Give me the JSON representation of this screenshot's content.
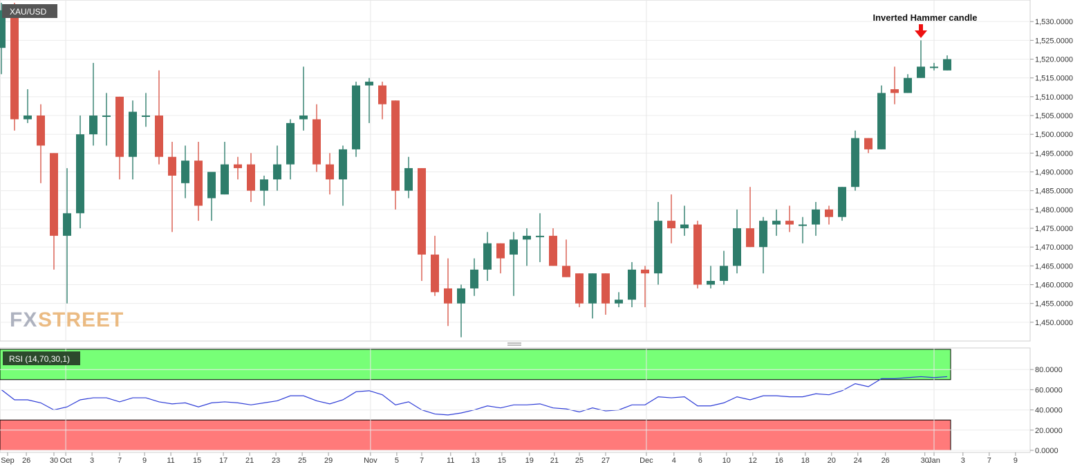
{
  "symbol_label": "XAU/USD",
  "annotation_label": "Inverted Hammer candle",
  "watermark": {
    "part1": "FX",
    "part2": "STREET"
  },
  "rsi_label": "RSI (14,70,30,1)",
  "colors": {
    "up": "#2e7d6b",
    "down": "#d9574a",
    "overbought": "#77ff77",
    "oversold": "#ff7a7a",
    "rsi_line": "#2c3bd6",
    "arrow": "#ee1111",
    "badge": "#555555",
    "rsi_badge": "#2c4a2c"
  },
  "chart_data": [
    {
      "type": "candlestick",
      "title": "XAU/USD",
      "ylim": [
        1445,
        1535
      ],
      "y_ticks": [
        "1,450.0000",
        "1,455.0000",
        "1,460.0000",
        "1,465.0000",
        "1,470.0000",
        "1,475.0000",
        "1,480.0000",
        "1,485.0000",
        "1,490.0000",
        "1,495.0000",
        "1,500.0000",
        "1,505.0000",
        "1,510.0000",
        "1,515.0000",
        "1,520.0000",
        "1,525.0000",
        "1,530.0000"
      ],
      "x_tick_labels": [
        "Sep",
        "26",
        "30",
        "Oct",
        "3",
        "7",
        "9",
        "11",
        "15",
        "17",
        "21",
        "23",
        "25",
        "29",
        "Nov",
        "5",
        "7",
        "11",
        "13",
        "15",
        "19",
        "21",
        "25",
        "27",
        "Dec",
        "4",
        "6",
        "10",
        "12",
        "16",
        "18",
        "20",
        "24",
        "26",
        "30",
        "Jan",
        "3",
        "7",
        "9"
      ],
      "candles": [
        {
          "o": 1523,
          "h": 1535,
          "l": 1516,
          "c": 1533
        },
        {
          "o": 1534,
          "h": 1535,
          "l": 1501,
          "c": 1504
        },
        {
          "o": 1504,
          "h": 1512,
          "l": 1503,
          "c": 1505
        },
        {
          "o": 1505,
          "h": 1508,
          "l": 1487,
          "c": 1497
        },
        {
          "o": 1495,
          "h": 1495,
          "l": 1464,
          "c": 1473
        },
        {
          "o": 1473,
          "h": 1491,
          "l": 1455,
          "c": 1479
        },
        {
          "o": 1479,
          "h": 1505,
          "l": 1475,
          "c": 1500
        },
        {
          "o": 1500,
          "h": 1519,
          "l": 1497,
          "c": 1505
        },
        {
          "o": 1505,
          "h": 1511,
          "l": 1497,
          "c": 1505
        },
        {
          "o": 1510,
          "h": 1510,
          "l": 1488,
          "c": 1494
        },
        {
          "o": 1494,
          "h": 1509,
          "l": 1488,
          "c": 1506
        },
        {
          "o": 1505,
          "h": 1511,
          "l": 1502,
          "c": 1505
        },
        {
          "o": 1505,
          "h": 1517,
          "l": 1492,
          "c": 1494
        },
        {
          "o": 1494,
          "h": 1498,
          "l": 1474,
          "c": 1489
        },
        {
          "o": 1487,
          "h": 1497,
          "l": 1483,
          "c": 1493
        },
        {
          "o": 1493,
          "h": 1498,
          "l": 1477,
          "c": 1481
        },
        {
          "o": 1483,
          "h": 1490,
          "l": 1477,
          "c": 1490
        },
        {
          "o": 1484,
          "h": 1498,
          "l": 1484,
          "c": 1492
        },
        {
          "o": 1492,
          "h": 1494,
          "l": 1488,
          "c": 1491
        },
        {
          "o": 1492,
          "h": 1495,
          "l": 1482,
          "c": 1485
        },
        {
          "o": 1485,
          "h": 1489,
          "l": 1481,
          "c": 1488
        },
        {
          "o": 1488,
          "h": 1497,
          "l": 1485,
          "c": 1492
        },
        {
          "o": 1492,
          "h": 1504,
          "l": 1488,
          "c": 1503
        },
        {
          "o": 1504,
          "h": 1518,
          "l": 1501,
          "c": 1505
        },
        {
          "o": 1504,
          "h": 1508,
          "l": 1490,
          "c": 1492
        },
        {
          "o": 1492,
          "h": 1495,
          "l": 1484,
          "c": 1488
        },
        {
          "o": 1488,
          "h": 1497,
          "l": 1481,
          "c": 1496
        },
        {
          "o": 1496,
          "h": 1514,
          "l": 1494,
          "c": 1513
        },
        {
          "o": 1513,
          "h": 1515,
          "l": 1503,
          "c": 1514
        },
        {
          "o": 1513,
          "h": 1514,
          "l": 1504,
          "c": 1508
        },
        {
          "o": 1509,
          "h": 1509,
          "l": 1480,
          "c": 1485
        },
        {
          "o": 1485,
          "h": 1494,
          "l": 1483,
          "c": 1491
        },
        {
          "o": 1491,
          "h": 1491,
          "l": 1461,
          "c": 1468
        },
        {
          "o": 1468,
          "h": 1473,
          "l": 1457,
          "c": 1458
        },
        {
          "o": 1459,
          "h": 1467,
          "l": 1449,
          "c": 1455
        },
        {
          "o": 1455,
          "h": 1460,
          "l": 1446,
          "c": 1459
        },
        {
          "o": 1459,
          "h": 1467,
          "l": 1457,
          "c": 1464
        },
        {
          "o": 1464,
          "h": 1474,
          "l": 1461,
          "c": 1471
        },
        {
          "o": 1471,
          "h": 1471,
          "l": 1463,
          "c": 1467
        },
        {
          "o": 1468,
          "h": 1474,
          "l": 1457,
          "c": 1472
        },
        {
          "o": 1472,
          "h": 1475,
          "l": 1465,
          "c": 1473
        },
        {
          "o": 1473,
          "h": 1479,
          "l": 1466,
          "c": 1473
        },
        {
          "o": 1473,
          "h": 1475,
          "l": 1465,
          "c": 1465
        },
        {
          "o": 1465,
          "h": 1472,
          "l": 1462,
          "c": 1462
        },
        {
          "o": 1463,
          "h": 1463,
          "l": 1454,
          "c": 1455
        },
        {
          "o": 1455,
          "h": 1463,
          "l": 1451,
          "c": 1463
        },
        {
          "o": 1463,
          "h": 1463,
          "l": 1452,
          "c": 1455
        },
        {
          "o": 1455,
          "h": 1458,
          "l": 1454,
          "c": 1456
        },
        {
          "o": 1456,
          "h": 1466,
          "l": 1454,
          "c": 1464
        },
        {
          "o": 1464,
          "h": 1465,
          "l": 1454,
          "c": 1463
        },
        {
          "o": 1463,
          "h": 1482,
          "l": 1460,
          "c": 1477
        },
        {
          "o": 1477,
          "h": 1484,
          "l": 1471,
          "c": 1475
        },
        {
          "o": 1475,
          "h": 1481,
          "l": 1473,
          "c": 1476
        },
        {
          "o": 1476,
          "h": 1477,
          "l": 1459,
          "c": 1460
        },
        {
          "o": 1460,
          "h": 1465,
          "l": 1459,
          "c": 1461
        },
        {
          "o": 1461,
          "h": 1469,
          "l": 1460,
          "c": 1465
        },
        {
          "o": 1465,
          "h": 1480,
          "l": 1463,
          "c": 1475
        },
        {
          "o": 1475,
          "h": 1486,
          "l": 1470,
          "c": 1470
        },
        {
          "o": 1470,
          "h": 1478,
          "l": 1463,
          "c": 1477
        },
        {
          "o": 1476,
          "h": 1480,
          "l": 1473,
          "c": 1477
        },
        {
          "o": 1477,
          "h": 1481,
          "l": 1474,
          "c": 1476
        },
        {
          "o": 1476,
          "h": 1478,
          "l": 1471,
          "c": 1476
        },
        {
          "o": 1476,
          "h": 1482,
          "l": 1473,
          "c": 1480
        },
        {
          "o": 1480,
          "h": 1481,
          "l": 1476,
          "c": 1478
        },
        {
          "o": 1478,
          "h": 1486,
          "l": 1477,
          "c": 1486
        },
        {
          "o": 1486,
          "h": 1501,
          "l": 1485,
          "c": 1499
        },
        {
          "o": 1499,
          "h": 1499,
          "l": 1495,
          "c": 1496
        },
        {
          "o": 1496,
          "h": 1513,
          "l": 1496,
          "c": 1511
        },
        {
          "o": 1512,
          "h": 1518,
          "l": 1508,
          "c": 1511
        },
        {
          "o": 1511,
          "h": 1516,
          "l": 1511,
          "c": 1515
        },
        {
          "o": 1515,
          "h": 1525,
          "l": 1515,
          "c": 1518
        },
        {
          "o": 1518,
          "h": 1519,
          "l": 1517,
          "c": 1518
        },
        {
          "o": 1517,
          "h": 1521,
          "l": 1517,
          "c": 1520
        }
      ]
    },
    {
      "type": "line",
      "title": "RSI (14,70,30,1)",
      "ylim": [
        0,
        100
      ],
      "y_ticks": [
        "0.0000",
        "20.0000",
        "40.0000",
        "60.0000",
        "80.0000"
      ],
      "overbought": 70,
      "oversold": 30,
      "series": [
        {
          "name": "RSI (14,70,30,1)",
          "values": [
            60,
            50,
            50,
            47,
            40,
            43,
            50,
            52,
            52,
            48,
            52,
            52,
            48,
            46,
            47,
            43,
            47,
            48,
            47,
            45,
            47,
            49,
            54,
            54,
            49,
            46,
            50,
            58,
            59,
            55,
            45,
            48,
            40,
            36,
            35,
            37,
            40,
            44,
            42,
            45,
            45,
            46,
            42,
            41,
            38,
            42,
            39,
            40,
            45,
            45,
            53,
            52,
            53,
            44,
            44,
            47,
            53,
            50,
            54,
            54,
            53,
            53,
            56,
            55,
            59,
            66,
            63,
            71,
            71,
            72,
            73,
            72,
            73
          ]
        }
      ]
    }
  ]
}
